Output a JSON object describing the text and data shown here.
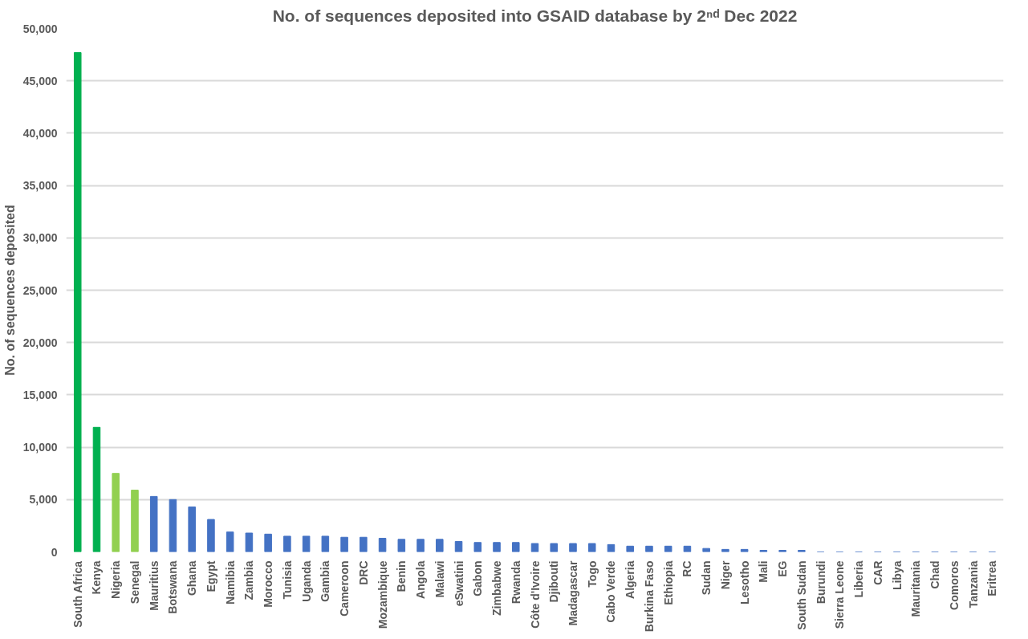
{
  "chart_data": {
    "type": "bar",
    "title": "No. of sequences deposited into GSAID database by 2ⁿᵈ Dec 2022",
    "ylabel": "No. of sequences deposited",
    "categories": [
      "South Africa",
      "Kenya",
      "Nigeria",
      "Senegal",
      "Mauritius",
      "Botswana",
      "Ghana",
      "Egypt",
      "Namibia",
      "Zambia",
      "Morocco",
      "Tunisia",
      "Uganda",
      "Gambia",
      "Cameroon",
      "DRC",
      "Mozambique",
      "Benin",
      "Angola",
      "Malawi",
      "eSwatini",
      "Gabon",
      "Zimbabwe",
      "Rwanda",
      "Côte d'Ivoire",
      "Djibouti",
      "Madagascar",
      "Togo",
      "Cabo Verde",
      "Algeria",
      "Burkina Faso",
      "Ethiopia",
      "RC",
      "Sudan",
      "Niger",
      "Lesotho",
      "Mali",
      "EG",
      "South Sudan",
      "Burundi",
      "Sierra Leone",
      "Liberia",
      "CAR",
      "Libya",
      "Mauritania",
      "Chad",
      "Comoros",
      "Tanzania",
      "Eritrea"
    ],
    "values": [
      47700,
      11900,
      7500,
      5900,
      5300,
      5000,
      4300,
      3100,
      1900,
      1800,
      1700,
      1500,
      1500,
      1500,
      1400,
      1400,
      1300,
      1200,
      1200,
      1200,
      1000,
      900,
      900,
      900,
      800,
      800,
      800,
      800,
      700,
      550,
      550,
      550,
      550,
      330,
      240,
      240,
      150,
      150,
      150,
      0,
      0,
      0,
      0,
      0,
      0,
      0,
      0,
      0,
      0
    ],
    "colors": [
      "#00b050",
      "#00b050",
      "#92d050",
      "#92d050",
      "#4472c4",
      "#4472c4",
      "#4472c4",
      "#4472c4",
      "#4472c4",
      "#4472c4",
      "#4472c4",
      "#4472c4",
      "#4472c4",
      "#4472c4",
      "#4472c4",
      "#4472c4",
      "#4472c4",
      "#4472c4",
      "#4472c4",
      "#4472c4",
      "#4472c4",
      "#4472c4",
      "#4472c4",
      "#4472c4",
      "#4472c4",
      "#4472c4",
      "#4472c4",
      "#4472c4",
      "#4472c4",
      "#4472c4",
      "#4472c4",
      "#4472c4",
      "#4472c4",
      "#4472c4",
      "#4472c4",
      "#4472c4",
      "#4472c4",
      "#4472c4",
      "#4472c4",
      "#4472c4",
      "#4472c4",
      "#4472c4",
      "#4472c4",
      "#4472c4",
      "#4472c4",
      "#4472c4",
      "#4472c4",
      "#4472c4",
      "#4472c4"
    ],
    "ylim": [
      0,
      50000
    ],
    "yticks": [
      {
        "value": 0,
        "label": "0"
      },
      {
        "value": 5000,
        "label": "5,000"
      },
      {
        "value": 10000,
        "label": "10,000"
      },
      {
        "value": 15000,
        "label": "15,000"
      },
      {
        "value": 20000,
        "label": "20,000"
      },
      {
        "value": 25000,
        "label": "25,000"
      },
      {
        "value": 30000,
        "label": "30,000"
      },
      {
        "value": 35000,
        "label": "35,000"
      },
      {
        "value": 40000,
        "label": "40,000"
      },
      {
        "value": 45000,
        "label": "45,000"
      },
      {
        "value": 50000,
        "label": "50,000"
      }
    ],
    "grid": "y"
  }
}
